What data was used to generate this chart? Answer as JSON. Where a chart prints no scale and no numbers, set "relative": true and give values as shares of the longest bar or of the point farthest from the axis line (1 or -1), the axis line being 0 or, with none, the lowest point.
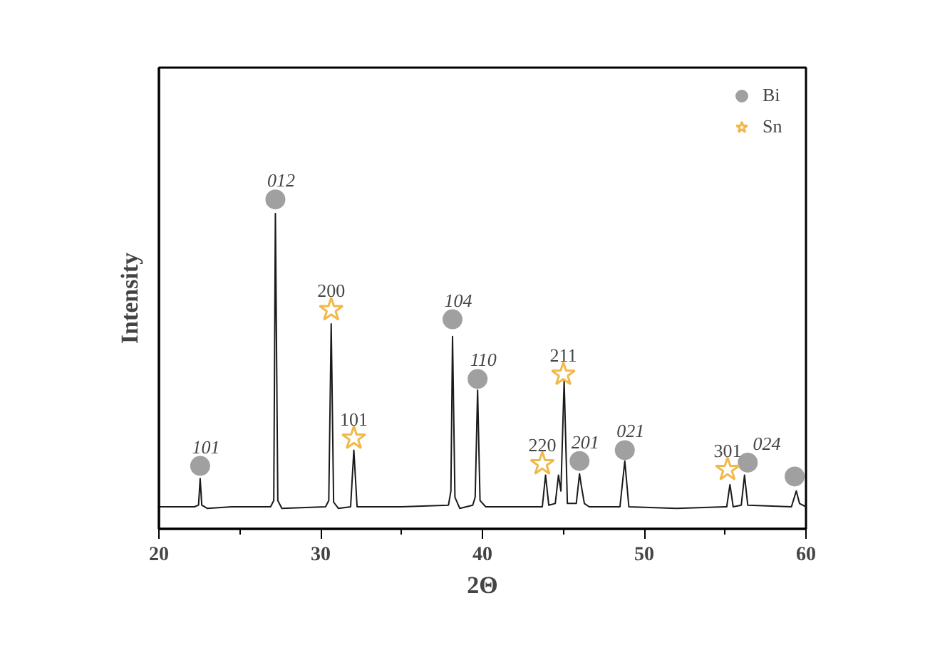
{
  "chart_data": {
    "type": "line",
    "relative": true,
    "xlabel": "2Θ",
    "ylabel": "Intensity",
    "xlim": [
      20,
      60
    ],
    "xticks": [
      20,
      {
        "value": 25,
        "label": null
      },
      30,
      {
        "value": 35,
        "label": null
      },
      40,
      {
        "value": 45,
        "label": null
      },
      50,
      {
        "value": 55,
        "label": null
      },
      60
    ],
    "legend": "top right",
    "grid": false,
    "series": [
      {
        "color": "#1a1a1a",
        "x": [
          20.0,
          22.2,
          22.45,
          22.55,
          22.65,
          23.0,
          24.5,
          26.9,
          27.1,
          27.2,
          27.35,
          27.6,
          30.3,
          30.5,
          30.65,
          30.8,
          31.1,
          31.85,
          32.05,
          32.25,
          35.0,
          37.9,
          38.05,
          38.15,
          38.3,
          38.6,
          39.4,
          39.55,
          39.7,
          39.85,
          40.2,
          43.7,
          43.9,
          44.1,
          44.5,
          44.7,
          44.85,
          45.05,
          45.25,
          45.8,
          46.0,
          46.1,
          46.3,
          46.6,
          48.5,
          48.8,
          49.05,
          52.0,
          55.1,
          55.3,
          55.5,
          56.0,
          56.2,
          56.4,
          59.1,
          59.4,
          59.6,
          60.0
        ],
        "values": [
          0.067,
          0.067,
          0.072,
          0.153,
          0.072,
          0.062,
          0.067,
          0.067,
          0.086,
          0.957,
          0.086,
          0.062,
          0.067,
          0.086,
          0.622,
          0.081,
          0.062,
          0.067,
          0.239,
          0.067,
          0.067,
          0.072,
          0.115,
          0.584,
          0.096,
          0.062,
          0.072,
          0.096,
          0.421,
          0.086,
          0.067,
          0.067,
          0.163,
          0.072,
          0.077,
          0.163,
          0.115,
          0.45,
          0.077,
          0.077,
          0.167,
          0.134,
          0.077,
          0.067,
          0.067,
          0.206,
          0.067,
          0.062,
          0.067,
          0.134,
          0.067,
          0.072,
          0.163,
          0.072,
          0.067,
          0.115,
          0.077,
          0.067
        ]
      },
      {
        "type": "scatter",
        "name": "Bi",
        "color": "#a0a0a0",
        "marker": "circle",
        "x": [
          22.55,
          27.2,
          38.15,
          39.7,
          46.0,
          48.8,
          56.4,
          59.3
        ],
        "values": [
          0.191,
          1.0,
          0.636,
          0.455,
          0.206,
          0.239,
          0.201,
          0.159
        ]
      },
      {
        "type": "scatter",
        "name": "Sn",
        "color": "#f0b94a",
        "marker": "star",
        "x": [
          30.65,
          32.05,
          43.7,
          45.0,
          55.15
        ],
        "values": [
          0.665,
          0.275,
          0.197,
          0.469,
          0.18
        ]
      }
    ],
    "annotations": [
      {
        "text": "101",
        "x": 22.55,
        "y": 0.191
      },
      {
        "text": "012",
        "x": 27.2,
        "y": 1.0
      },
      {
        "text": "200",
        "x": 30.65,
        "y": 0.665
      },
      {
        "text": "101",
        "x": 32.05,
        "y": 0.275
      },
      {
        "text": "104",
        "x": 38.15,
        "y": 0.636
      },
      {
        "text": "110",
        "x": 39.7,
        "y": 0.455
      },
      {
        "text": "220",
        "x": 43.7,
        "y": 0.197
      },
      {
        "text": "211",
        "x": 45.0,
        "y": 0.469
      },
      {
        "text": "201",
        "x": 46.0,
        "y": 0.206
      },
      {
        "text": "021",
        "x": 48.8,
        "y": 0.239
      },
      {
        "text": "301",
        "x": 55.15,
        "y": 0.18
      },
      {
        "text": "024",
        "x": 56.4,
        "y": 0.201
      }
    ]
  }
}
